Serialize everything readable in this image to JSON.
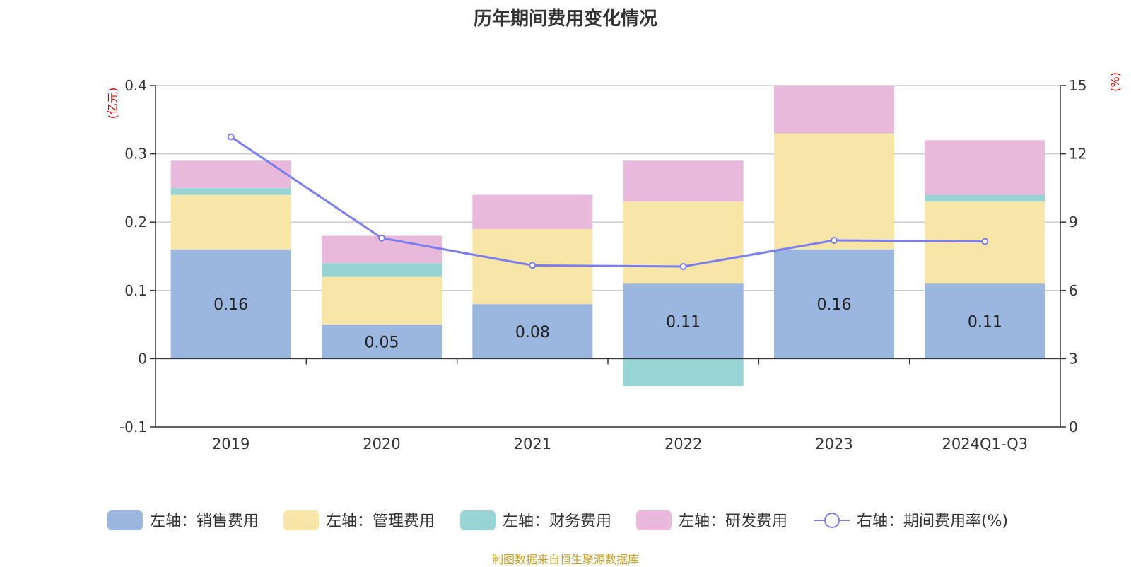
{
  "title": "历年期间费用变化情况",
  "source": "制图数据来自恒生聚源数据库",
  "chart_data": {
    "type": "bar",
    "stacked": true,
    "categories": [
      "2019",
      "2020",
      "2021",
      "2022",
      "2023",
      "2024Q1-Q3"
    ],
    "left_axis": {
      "unit": "(亿元)",
      "ylim": [
        -0.1,
        0.4
      ],
      "ticks": [
        "-0.1",
        "0",
        "0.1",
        "0.2",
        "0.3",
        "0.4"
      ]
    },
    "right_axis": {
      "unit": "(%)",
      "ylim": [
        0,
        15
      ],
      "ticks": [
        "0",
        "3",
        "6",
        "9",
        "12",
        "15"
      ]
    },
    "series": [
      {
        "name": "左轴：销售费用",
        "axis": "left",
        "color": "#9bb7e0",
        "values": [
          0.16,
          0.05,
          0.08,
          0.11,
          0.16,
          0.11
        ],
        "labels": [
          "0.16",
          "0.05",
          "0.08",
          "0.11",
          "0.16",
          "0.11"
        ]
      },
      {
        "name": "左轴：管理费用",
        "axis": "left",
        "color": "#f8e6a8",
        "values": [
          0.08,
          0.07,
          0.11,
          0.12,
          0.17,
          0.12
        ]
      },
      {
        "name": "左轴：财务费用",
        "axis": "left",
        "color": "#98d4d4",
        "values": [
          0.01,
          0.02,
          0.0,
          -0.04,
          0.0,
          0.01
        ]
      },
      {
        "name": "左轴：研发费用",
        "axis": "left",
        "color": "#e8b9da",
        "values": [
          0.04,
          0.04,
          0.05,
          0.06,
          0.07,
          0.08
        ]
      }
    ],
    "line_series": {
      "name": "右轴：期间费用率(%)",
      "axis": "right",
      "color": "#7b7ef0",
      "values": [
        12.75,
        8.3,
        7.1,
        7.05,
        8.2,
        8.15
      ]
    },
    "grid": true,
    "legend_position": "bottom"
  }
}
